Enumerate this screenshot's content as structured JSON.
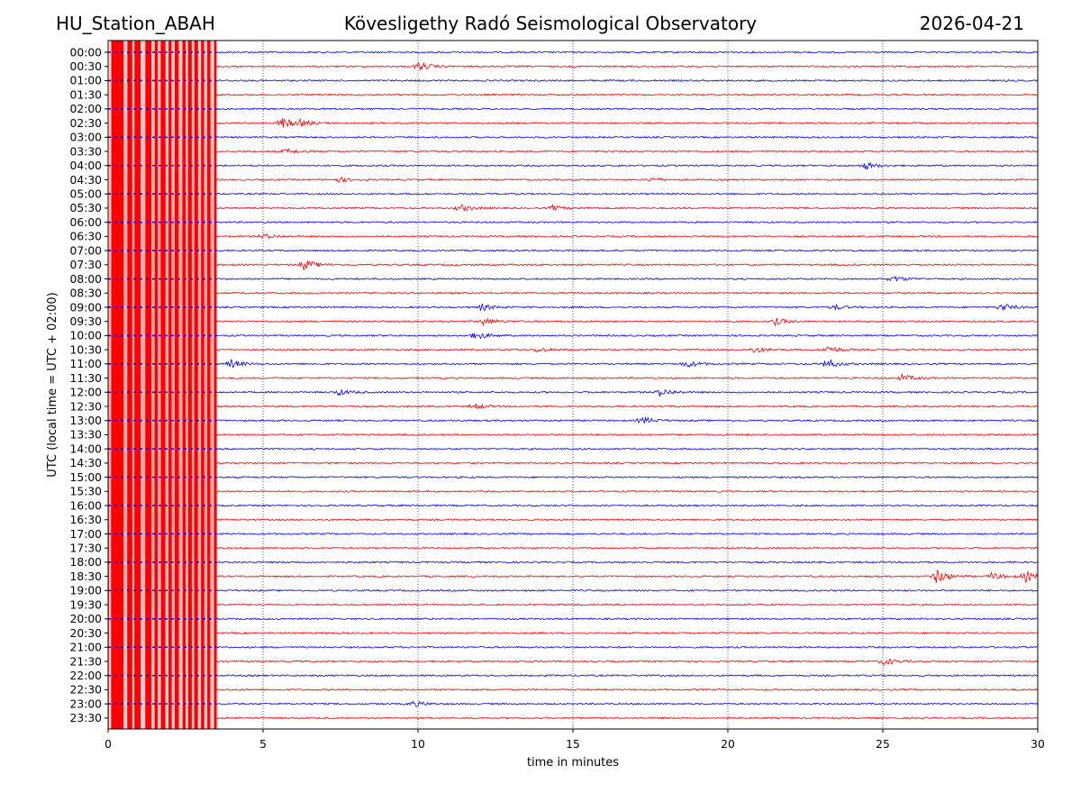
{
  "header": {
    "station": "HU_Station_ABAH",
    "observatory": "Kövesligethy Radó Seismological Observatory",
    "date": "2026-04-21"
  },
  "colors": {
    "even_trace": "#0000ff",
    "odd_trace": "#ff0000",
    "axes": "#000000",
    "grid": "#000080"
  },
  "chart_data": {
    "type": "line",
    "title": "Kövesligethy Radó Seismological Observatory",
    "xlabel": "time in minutes",
    "ylabel": "UTC (local time = UTC + 02:00)",
    "xlim": [
      0,
      30
    ],
    "x_ticks": [
      0,
      5,
      10,
      15,
      20,
      25,
      30
    ],
    "grid": "vertical dotted lines at x ticks",
    "row_labels": [
      "00:00",
      "00:30",
      "01:00",
      "01:30",
      "02:00",
      "02:30",
      "03:00",
      "03:30",
      "04:00",
      "04:30",
      "05:00",
      "05:30",
      "06:00",
      "06:30",
      "07:00",
      "07:30",
      "08:00",
      "08:30",
      "09:00",
      "09:30",
      "10:00",
      "10:30",
      "11:00",
      "11:30",
      "12:00",
      "12:30",
      "13:00",
      "13:30",
      "14:00",
      "14:30",
      "15:00",
      "15:30",
      "16:00",
      "16:30",
      "17:00",
      "17:30",
      "18:00",
      "18:30",
      "19:00",
      "19:30",
      "20:00",
      "20:30",
      "21:00",
      "21:30",
      "22:00",
      "22:30",
      "23:00",
      "23:30"
    ],
    "trace_colors": [
      "blue",
      "red"
    ],
    "saturated_segment": {
      "x_range": [
        0,
        3.5
      ],
      "description": "clipped high-amplitude signal across all rows"
    },
    "events": [
      {
        "row": "00:30",
        "x": 10.0,
        "amp": 5.0
      },
      {
        "row": "02:30",
        "x": 5.6,
        "amp": 6.0
      },
      {
        "row": "02:30",
        "x": 6.2,
        "amp": 2.5
      },
      {
        "row": "03:30",
        "x": 5.7,
        "amp": 3.0
      },
      {
        "row": "04:00",
        "x": 24.4,
        "amp": 4.0
      },
      {
        "row": "04:30",
        "x": 7.4,
        "amp": 3.0
      },
      {
        "row": "04:30",
        "x": 17.5,
        "amp": 2.5
      },
      {
        "row": "05:30",
        "x": 11.3,
        "amp": 4.5
      },
      {
        "row": "05:30",
        "x": 14.3,
        "amp": 3.0
      },
      {
        "row": "06:30",
        "x": 5.0,
        "amp": 3.0
      },
      {
        "row": "07:30",
        "x": 6.3,
        "amp": 6.0
      },
      {
        "row": "08:00",
        "x": 25.3,
        "amp": 3.5
      },
      {
        "row": "09:00",
        "x": 12.0,
        "amp": 4.0
      },
      {
        "row": "09:00",
        "x": 23.4,
        "amp": 3.0
      },
      {
        "row": "09:00",
        "x": 28.8,
        "amp": 4.5
      },
      {
        "row": "09:30",
        "x": 12.1,
        "amp": 4.0
      },
      {
        "row": "09:30",
        "x": 21.5,
        "amp": 4.0
      },
      {
        "row": "10:00",
        "x": 11.8,
        "amp": 5.0
      },
      {
        "row": "10:30",
        "x": 13.8,
        "amp": 3.0
      },
      {
        "row": "10:30",
        "x": 20.8,
        "amp": 3.5
      },
      {
        "row": "10:30",
        "x": 23.2,
        "amp": 4.5
      },
      {
        "row": "11:00",
        "x": 3.9,
        "amp": 5.0
      },
      {
        "row": "11:00",
        "x": 18.6,
        "amp": 4.5
      },
      {
        "row": "11:00",
        "x": 23.1,
        "amp": 6.5
      },
      {
        "row": "11:30",
        "x": 25.6,
        "amp": 4.0
      },
      {
        "row": "12:00",
        "x": 7.4,
        "amp": 3.5
      },
      {
        "row": "12:00",
        "x": 17.8,
        "amp": 4.5
      },
      {
        "row": "12:30",
        "x": 11.8,
        "amp": 3.0
      },
      {
        "row": "13:00",
        "x": 17.2,
        "amp": 4.5
      },
      {
        "row": "18:30",
        "x": 26.7,
        "amp": 9.0
      },
      {
        "row": "18:30",
        "x": 28.5,
        "amp": 4.0
      },
      {
        "row": "18:30",
        "x": 29.6,
        "amp": 5.5
      },
      {
        "row": "21:30",
        "x": 25.0,
        "amp": 4.5
      },
      {
        "row": "23:00",
        "x": 9.8,
        "amp": 3.5
      }
    ]
  }
}
